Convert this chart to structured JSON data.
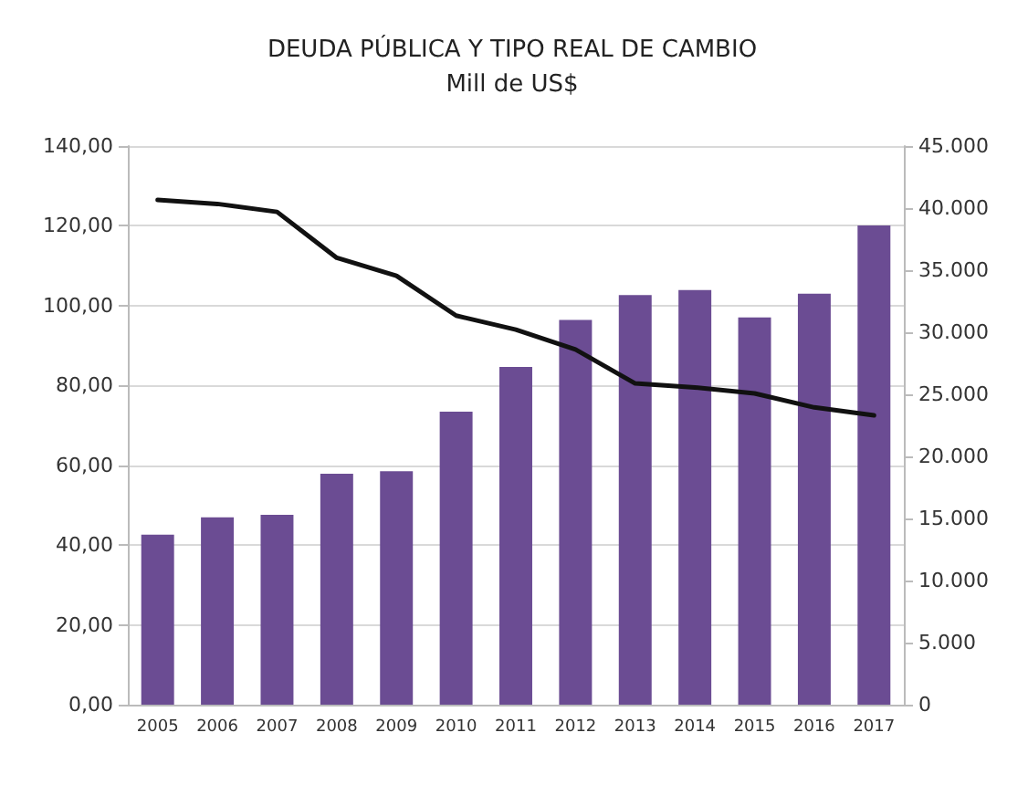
{
  "chart_data": {
    "type": "bar",
    "title": "DEUDA PÚBLICA Y TIPO REAL DE CAMBIO",
    "subtitle": "Mill de US$",
    "categories": [
      "2005",
      "2006",
      "2007",
      "2008",
      "2009",
      "2010",
      "2011",
      "2012",
      "2013",
      "2014",
      "2015",
      "2016",
      "2017"
    ],
    "series": [
      {
        "axis": "y2",
        "color": "#6b4c93",
        "values": [
          13700,
          15100,
          15300,
          18600,
          18800,
          23600,
          27200,
          31000,
          33000,
          33400,
          31200,
          33100,
          38600
        ]
      },
      {
        "type": "line",
        "axis": "y",
        "color": "#111111",
        "values": [
          126.5,
          125.5,
          123.5,
          112,
          107.5,
          97.5,
          94,
          89,
          80.5,
          79.5,
          78,
          74.5,
          72.5
        ]
      }
    ],
    "ylim": [
      0,
      140
    ],
    "yticks": [
      {
        "value": 0,
        "label": "0,00"
      },
      {
        "value": 20,
        "label": "20,00"
      },
      {
        "value": 40,
        "label": "40,00"
      },
      {
        "value": 60,
        "label": "60,00"
      },
      {
        "value": 80,
        "label": "80,00"
      },
      {
        "value": 100,
        "label": "100,00"
      },
      {
        "value": 120,
        "label": "120,00"
      },
      {
        "value": 140,
        "label": "140,00"
      }
    ],
    "y2lim": [
      0,
      45000
    ],
    "y2ticks": [
      0,
      {
        "value": 5000,
        "label": "5.000"
      },
      {
        "value": 10000,
        "label": "10.000"
      },
      {
        "value": 15000,
        "label": "15.000"
      },
      {
        "value": 20000,
        "label": "20.000"
      },
      {
        "value": 25000,
        "label": "25.000"
      },
      {
        "value": 30000,
        "label": "30.000"
      },
      {
        "value": 35000,
        "label": "35.000"
      },
      {
        "value": 40000,
        "label": "40.000"
      },
      {
        "value": 45000,
        "label": "45.000"
      }
    ],
    "grid": "y",
    "marker": "none",
    "line_style": "solid"
  }
}
